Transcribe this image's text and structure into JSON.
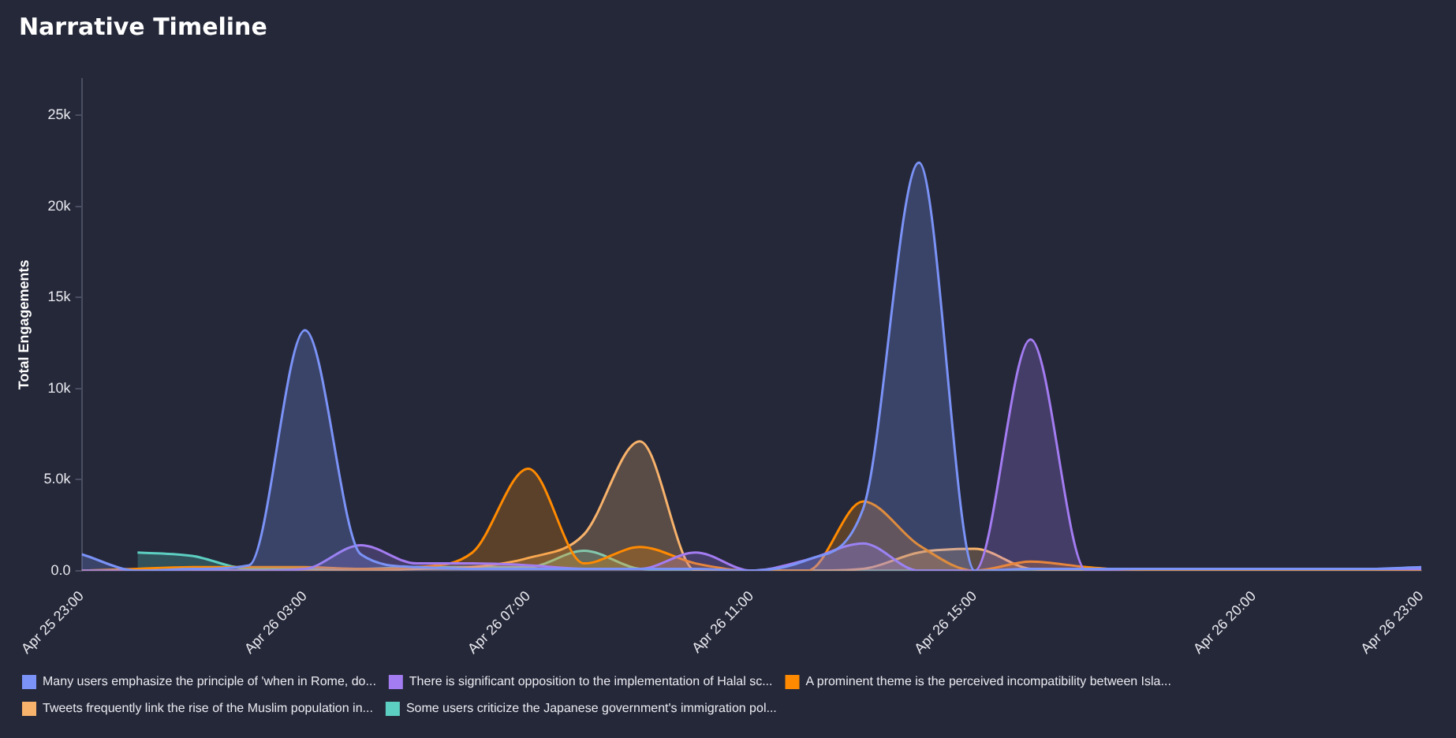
{
  "chart_data": {
    "type": "area",
    "title": "Narrative Timeline",
    "ylabel": "Total Engagements",
    "x": [
      "--04-25T23:00",
      "--04-26T00:00",
      "--04-26T01:00",
      "--04-26T02:00",
      "--04-26T03:00",
      "--04-26T04:00",
      "--04-26T05:00",
      "--04-26T06:00",
      "--04-26T07:00",
      "--04-26T08:00",
      "--04-26T09:00",
      "--04-26T10:00",
      "--04-26T11:00",
      "--04-26T12:00",
      "--04-26T13:00",
      "--04-26T14:00",
      "--04-26T15:00",
      "--04-26T16:00",
      "--04-26T17:00",
      "--04-26T18:00",
      "--04-26T19:00",
      "--04-26T20:00",
      "--04-26T21:00",
      "--04-26T22:00",
      "--04-26T23:00"
    ],
    "xlim": [
      "--04-25T23:00",
      "--04-26T23:00"
    ],
    "xticks": [
      {
        "value": "--04-25T23:00",
        "label": "Apr 25 23:00"
      },
      {
        "value": "--04-26T03:00",
        "label": "Apr 26 03:00"
      },
      {
        "value": "--04-26T07:00",
        "label": "Apr 26 07:00"
      },
      {
        "value": "--04-26T11:00",
        "label": "Apr 26 11:00"
      },
      {
        "value": "--04-26T15:00",
        "label": "Apr 26 15:00"
      },
      {
        "value": "--04-26T20:00",
        "label": "Apr 26 20:00"
      },
      {
        "value": "--04-26T23:00",
        "label": "Apr 26 23:00"
      }
    ],
    "ylim": [
      0,
      27000
    ],
    "yticks": [
      {
        "value": 0,
        "label": "0.0"
      },
      {
        "value": 5000,
        "label": "5.0k"
      },
      {
        "value": 10000,
        "label": "10k"
      },
      {
        "value": 15000,
        "label": "15k"
      },
      {
        "value": 20000,
        "label": "20k"
      },
      {
        "value": 25000,
        "label": "25k"
      }
    ],
    "grid": false,
    "legend": "bottom",
    "marker": "none",
    "series": [
      {
        "name": "Many users emphasize the principle of 'when in Rome, do...",
        "color": "#7b93f7",
        "values": [
          900,
          0,
          100,
          300,
          13200,
          900,
          200,
          100,
          100,
          100,
          100,
          100,
          0,
          600,
          3400,
          22400,
          0,
          100,
          100,
          100,
          100,
          100,
          100,
          100,
          200
        ]
      },
      {
        "name": "There is significant opposition to the implementation of Halal sc...",
        "color": "#a47cf2",
        "values": [
          0,
          0,
          0,
          0,
          100,
          1400,
          400,
          400,
          300,
          100,
          100,
          1000,
          0,
          600,
          1500,
          0,
          0,
          12700,
          0,
          100,
          100,
          100,
          100,
          100,
          100
        ]
      },
      {
        "name": "A prominent theme is the perceived incompatibility between Isla...",
        "color": "#ff8a00",
        "values": [
          0,
          100,
          200,
          200,
          200,
          100,
          200,
          1000,
          5600,
          400,
          1300,
          400,
          0,
          0,
          3800,
          1400,
          0,
          500,
          200,
          0,
          0,
          0,
          0,
          0,
          0
        ]
      },
      {
        "name": "Tweets frequently link the rise of the Muslim population in...",
        "color": "#f7b26b",
        "values": [
          0,
          0,
          0,
          0,
          0,
          0,
          100,
          200,
          700,
          2000,
          7100,
          0,
          0,
          0,
          100,
          1000,
          1200,
          100,
          0,
          0,
          0,
          0,
          0,
          0,
          0
        ]
      },
      {
        "name": "Some users criticize the Japanese government's immigration pol...",
        "color": "#5dcfc2",
        "values": [
          null,
          1000,
          800,
          100,
          100,
          100,
          200,
          200,
          200,
          1100,
          100,
          0,
          0,
          0,
          0,
          0,
          0,
          0,
          0,
          0,
          0,
          0,
          0,
          0,
          0
        ]
      }
    ]
  }
}
